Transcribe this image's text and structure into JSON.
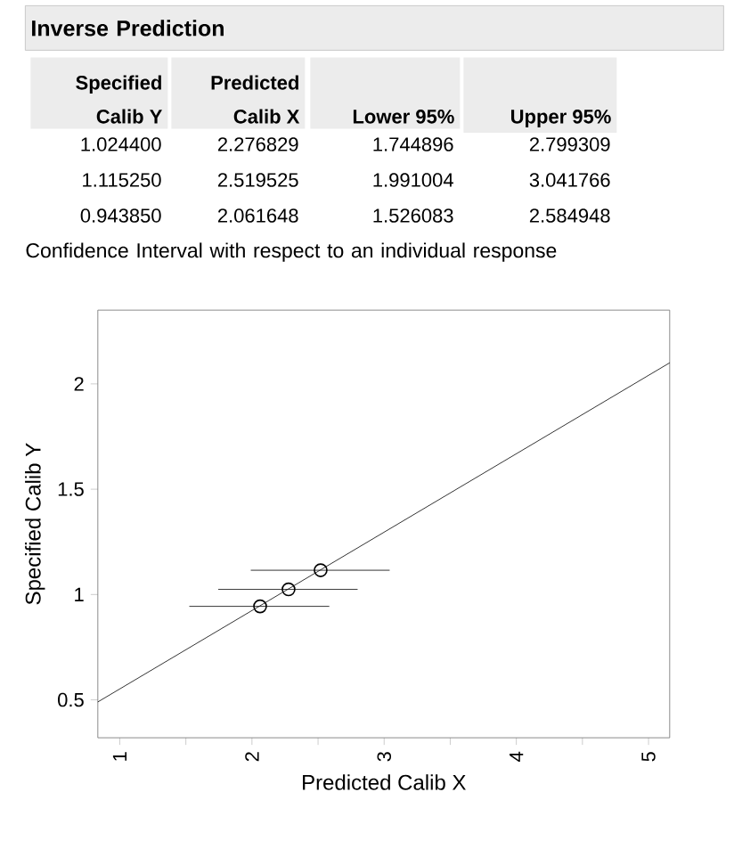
{
  "chart_data": {
    "type": "scatter",
    "title": "Inverse Prediction",
    "subtitle": "Confidence Interval with respect to an individual response",
    "annotations": [
      "Specified Calib Y",
      "Predicted Calib X",
      "Lower 95%",
      "Upper 95%",
      "1.024400",
      "2.276829",
      "1.744896",
      "2.799309",
      "1.115250",
      "2.519525",
      "1.991004",
      "3.041766",
      "0.943850",
      "2.061648",
      "1.526083",
      "2.584948"
    ],
    "xlabel": "Predicted Calib X",
    "ylabel": "Specified Calib Y",
    "xlim": [
      0.834,
      5.16
    ],
    "ylim": [
      0.32,
      2.35
    ],
    "xticks": [
      1,
      {
        "value": 1.5,
        "label": null
      },
      2,
      {
        "value": 2.5,
        "label": null
      },
      3,
      {
        "value": 3.5,
        "label": null
      },
      4,
      {
        "value": 4.5,
        "label": null
      },
      5
    ],
    "yticks": [
      0.5,
      1,
      1.5,
      2
    ],
    "marker": "circle",
    "series": [
      {
        "type": "line",
        "color": "#000000",
        "marker": "none",
        "x": [
          0.834,
          5.16
        ],
        "values": [
          0.49,
          2.1
        ]
      },
      {
        "color": "#000000",
        "x": [
          2.276829,
          2.519525,
          2.061648
        ],
        "values": [
          1.0244,
          1.11525,
          0.94385
        ],
        "xerrors": [
          [
            1.744896,
            2.799309
          ],
          [
            1.991004,
            3.041766
          ],
          [
            1.526083,
            2.584948
          ]
        ]
      }
    ]
  }
}
